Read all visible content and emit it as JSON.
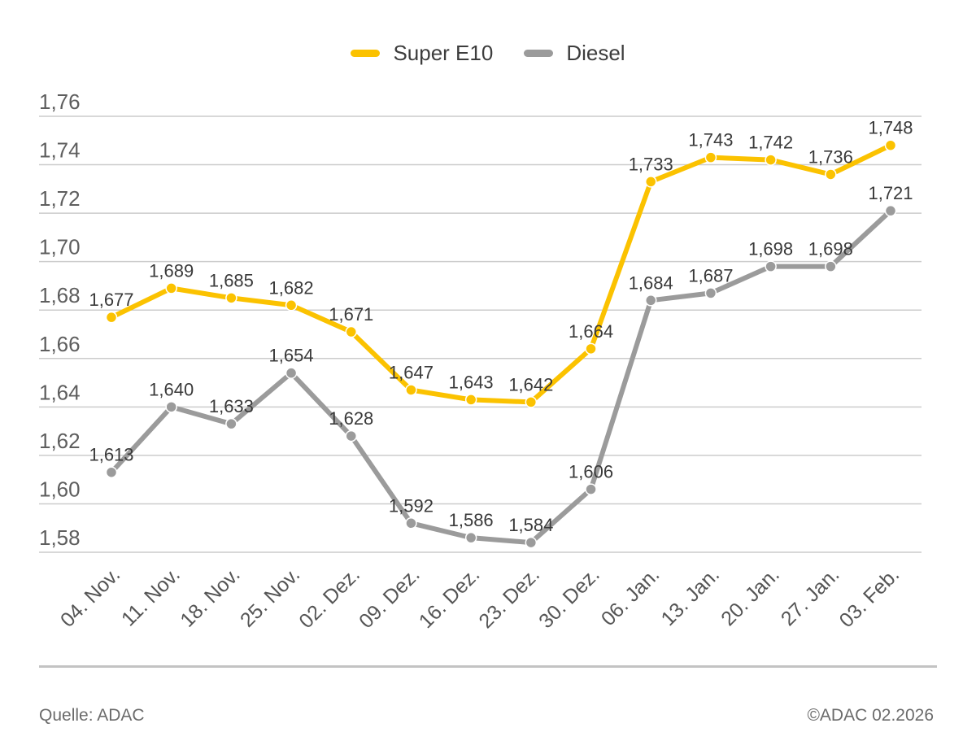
{
  "legend": {
    "items": [
      {
        "label": "Super E10",
        "color": "#FBC200"
      },
      {
        "label": "Diesel",
        "color": "#9B9B9B"
      }
    ]
  },
  "footer": {
    "source": "Quelle: ADAC",
    "copyright": "©ADAC 02.2026"
  },
  "colors": {
    "background": "#FFFFFF",
    "grid": "#CCCCCC",
    "y_axis_text": "#5E5E5E",
    "x_axis_text": "#555555",
    "data_label_text": "#3A3A3A",
    "divider": "#C3C3C3",
    "footer_text": "#6B6B6B",
    "point_stroke": "#FFFFFF"
  },
  "chart_data": {
    "type": "line",
    "title": "",
    "xlabel": "",
    "ylabel": "",
    "categories": [
      "04. Nov.",
      "11. Nov.",
      "18. Nov.",
      "25. Nov.",
      "02. Dez.",
      "09. Dez.",
      "16. Dez.",
      "23. Dez.",
      "30. Dez.",
      "06. Jan.",
      "13. Jan.",
      "20. Jan.",
      "27. Jan.",
      "03. Feb."
    ],
    "series": [
      {
        "name": "Super E10",
        "color": "#FBC200",
        "values": [
          1.677,
          1.689,
          1.685,
          1.682,
          1.671,
          1.647,
          1.643,
          1.642,
          1.664,
          1.733,
          1.743,
          1.742,
          1.736,
          1.748
        ],
        "labels": [
          "1,677",
          "1,689",
          "1,685",
          "1,682",
          "1,671",
          "1,647",
          "1,643",
          "1,642",
          "1,664",
          "1,733",
          "1,743",
          "1,742",
          "1,736",
          "1,748"
        ]
      },
      {
        "name": "Diesel",
        "color": "#9B9B9B",
        "values": [
          1.613,
          1.64,
          1.633,
          1.654,
          1.628,
          1.592,
          1.586,
          1.584,
          1.606,
          1.684,
          1.687,
          1.698,
          1.698,
          1.721
        ],
        "labels": [
          "1,613",
          "1,640",
          "1,633",
          "1,654",
          "1,628",
          "1,592",
          "1,586",
          "1,584",
          "1,606",
          "1,684",
          "1,687",
          "1,698",
          "1,698",
          "1,721"
        ]
      }
    ],
    "ylim": [
      1.58,
      1.76
    ],
    "ytick_step": 0.02,
    "ytick_labels": [
      "1,76",
      "1,74",
      "1,72",
      "1,70",
      "1,68",
      "1,66",
      "1,64",
      "1,62",
      "1,60",
      "1,58"
    ],
    "decimal_separator": ",",
    "grid": true,
    "legend_position": "top",
    "data_labels_shown": true
  }
}
